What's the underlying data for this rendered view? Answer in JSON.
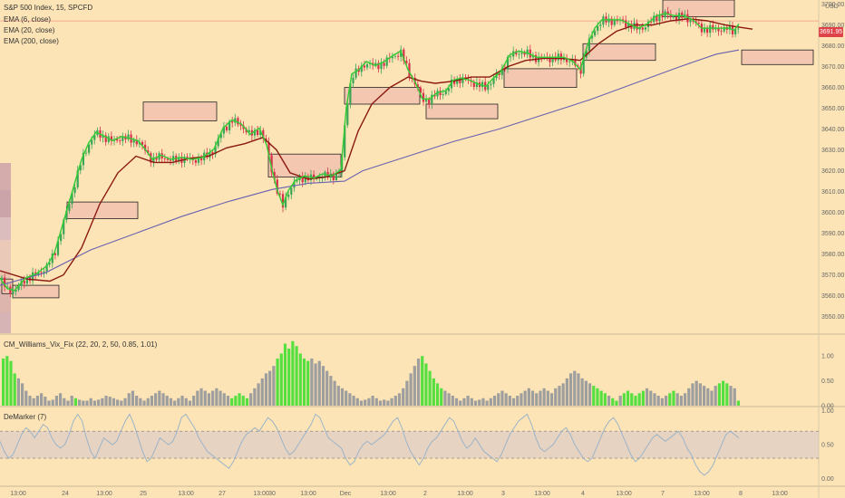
{
  "header": {
    "title": "S&P 500 Index, 15, SPCFD",
    "ema_labels": [
      "EMA (6, close)",
      "EMA (20, close)",
      "EMA (200, close)"
    ],
    "currency": "USD",
    "last_price": "3691.95"
  },
  "panes": {
    "vix_fix_label": "CM_Williams_Vix_Fix (22, 20, 2, 50, 0.85, 1.01)",
    "demarker_label": "DeMarker (7)"
  },
  "colors": {
    "background": "#fce4b6",
    "candle_up": "#3aa655",
    "candle_down": "#d4304a",
    "ema6": "#33cc33",
    "ema20": "#8b1a10",
    "ema200": "#6a61b0",
    "box_fill": "#f3c7b0",
    "vix_normal": "#9e9e9e",
    "vix_alert": "#55e040",
    "demarker_line": "#9bb4c8",
    "demarker_band": "#d6c4cc"
  },
  "chart_data": [
    {
      "type": "candlestick",
      "title": "S&P 500 Index, 15, SPCFD",
      "ylim": [
        3542,
        3702
      ],
      "y_ticks": [
        3550,
        3560,
        3570,
        3580,
        3590,
        3600,
        3610,
        3620,
        3630,
        3640,
        3650,
        3660,
        3670,
        3680,
        3690,
        3700
      ],
      "x_ticks": [
        "13:00",
        "24",
        "13:00",
        "25",
        "13:00",
        "27",
        "13:00",
        "30",
        "13:00",
        "Dec",
        "13:00",
        "2",
        "13:00",
        "3",
        "13:00",
        "4",
        "13:00",
        "7",
        "13:00",
        "8",
        "13:00"
      ],
      "close_path": [
        [
          0,
          3568
        ],
        [
          8,
          3563
        ],
        [
          16,
          3562
        ],
        [
          28,
          3568
        ],
        [
          40,
          3570
        ],
        [
          52,
          3574
        ],
        [
          60,
          3580
        ],
        [
          70,
          3595
        ],
        [
          80,
          3610
        ],
        [
          90,
          3625
        ],
        [
          98,
          3633
        ],
        [
          106,
          3638
        ],
        [
          116,
          3636
        ],
        [
          124,
          3634
        ],
        [
          134,
          3636
        ],
        [
          144,
          3635
        ],
        [
          152,
          3634
        ],
        [
          160,
          3630
        ],
        [
          168,
          3625
        ],
        [
          178,
          3627
        ],
        [
          188,
          3625
        ],
        [
          200,
          3626
        ],
        [
          212,
          3625
        ],
        [
          224,
          3626
        ],
        [
          236,
          3630
        ],
        [
          246,
          3640
        ],
        [
          256,
          3644
        ],
        [
          266,
          3642
        ],
        [
          276,
          3637
        ],
        [
          286,
          3640
        ],
        [
          294,
          3632
        ],
        [
          300,
          3620
        ],
        [
          306,
          3610
        ],
        [
          312,
          3603
        ],
        [
          318,
          3610
        ],
        [
          326,
          3615
        ],
        [
          336,
          3617
        ],
        [
          346,
          3616
        ],
        [
          356,
          3618
        ],
        [
          366,
          3617
        ],
        [
          376,
          3620
        ],
        [
          382,
          3650
        ],
        [
          388,
          3666
        ],
        [
          396,
          3668
        ],
        [
          404,
          3672
        ],
        [
          414,
          3670
        ],
        [
          424,
          3672
        ],
        [
          434,
          3675
        ],
        [
          442,
          3677
        ],
        [
          450,
          3668
        ],
        [
          458,
          3662
        ],
        [
          466,
          3654
        ],
        [
          474,
          3654
        ],
        [
          482,
          3657
        ],
        [
          492,
          3658
        ],
        [
          500,
          3663
        ],
        [
          508,
          3664
        ],
        [
          518,
          3663
        ],
        [
          528,
          3661
        ],
        [
          536,
          3660
        ],
        [
          544,
          3664
        ],
        [
          552,
          3667
        ],
        [
          562,
          3675
        ],
        [
          572,
          3677
        ],
        [
          582,
          3676
        ],
        [
          592,
          3674
        ],
        [
          602,
          3674
        ],
        [
          612,
          3674
        ],
        [
          622,
          3674
        ],
        [
          632,
          3672
        ],
        [
          640,
          3668
        ],
        [
          648,
          3680
        ],
        [
          656,
          3688
        ],
        [
          664,
          3692
        ],
        [
          674,
          3692
        ],
        [
          684,
          3692
        ],
        [
          694,
          3690
        ],
        [
          704,
          3688
        ],
        [
          714,
          3690
        ],
        [
          724,
          3694
        ],
        [
          734,
          3695
        ],
        [
          744,
          3694
        ],
        [
          754,
          3694
        ],
        [
          764,
          3692
        ],
        [
          774,
          3688
        ],
        [
          784,
          3688
        ],
        [
          794,
          3688
        ],
        [
          804,
          3688
        ],
        [
          810,
          3687
        ],
        [
          815,
          3690
        ]
      ],
      "ema_20_path": [
        [
          0,
          3572
        ],
        [
          30,
          3568
        ],
        [
          55,
          3567
        ],
        [
          70,
          3570
        ],
        [
          90,
          3583
        ],
        [
          110,
          3604
        ],
        [
          130,
          3619
        ],
        [
          150,
          3627
        ],
        [
          170,
          3624
        ],
        [
          190,
          3624
        ],
        [
          210,
          3626
        ],
        [
          230,
          3627
        ],
        [
          250,
          3631
        ],
        [
          270,
          3633
        ],
        [
          290,
          3636
        ],
        [
          305,
          3630
        ],
        [
          320,
          3619
        ],
        [
          340,
          3616
        ],
        [
          360,
          3617
        ],
        [
          380,
          3620
        ],
        [
          395,
          3639
        ],
        [
          410,
          3652
        ],
        [
          430,
          3660
        ],
        [
          450,
          3665
        ],
        [
          465,
          3663
        ],
        [
          480,
          3662
        ],
        [
          500,
          3663
        ],
        [
          520,
          3665
        ],
        [
          540,
          3665
        ],
        [
          560,
          3670
        ],
        [
          580,
          3673
        ],
        [
          600,
          3674
        ],
        [
          620,
          3674
        ],
        [
          640,
          3673
        ],
        [
          660,
          3681
        ],
        [
          680,
          3687
        ],
        [
          700,
          3690
        ],
        [
          720,
          3690
        ],
        [
          740,
          3692
        ],
        [
          760,
          3693
        ],
        [
          780,
          3692
        ],
        [
          800,
          3690
        ],
        [
          815,
          3689
        ],
        [
          830,
          3688
        ]
      ],
      "ema_200_path": [
        [
          0,
          3565
        ],
        [
          50,
          3571
        ],
        [
          100,
          3582
        ],
        [
          150,
          3590
        ],
        [
          200,
          3598
        ],
        [
          250,
          3605
        ],
        [
          300,
          3611
        ],
        [
          340,
          3614
        ],
        [
          380,
          3615
        ],
        [
          400,
          3620
        ],
        [
          450,
          3627
        ],
        [
          500,
          3634
        ],
        [
          550,
          3640
        ],
        [
          600,
          3647
        ],
        [
          650,
          3654
        ],
        [
          700,
          3662
        ],
        [
          750,
          3670
        ],
        [
          790,
          3676
        ],
        [
          815,
          3678
        ]
      ],
      "zones": [
        [
          2,
          14,
          3568,
          3561
        ],
        [
          74,
          152,
          3605,
          3597
        ],
        [
          158,
          239,
          3653,
          3644
        ],
        [
          296,
          376,
          3628,
          3617
        ],
        [
          380,
          463,
          3660,
          3652
        ],
        [
          470,
          549,
          3652,
          3645
        ],
        [
          556,
          636,
          3669,
          3660
        ],
        [
          643,
          723,
          3681,
          3673
        ],
        [
          731,
          810,
          3702,
          3694
        ],
        [
          818,
          897,
          3678,
          3671
        ],
        [
          14,
          65,
          3565,
          3559
        ]
      ]
    },
    {
      "type": "bar",
      "title": "CM_Williams_Vix_Fix (22, 20, 2, 50, 0.85, 1.01)",
      "ylim": [
        0,
        1.35
      ],
      "y_ticks": [
        "0.00",
        "0.50",
        "1.00"
      ],
      "values": [
        0.95,
        1.0,
        0.9,
        0.65,
        0.55,
        0.45,
        0.3,
        0.2,
        0.15,
        0.2,
        0.25,
        0.18,
        0.1,
        0.12,
        0.2,
        0.25,
        0.15,
        0.1,
        0.2,
        0.15,
        0.12,
        0.1,
        0.1,
        0.15,
        0.1,
        0.12,
        0.15,
        0.2,
        0.18,
        0.15,
        0.12,
        0.1,
        0.15,
        0.25,
        0.3,
        0.2,
        0.15,
        0.1,
        0.15,
        0.2,
        0.25,
        0.3,
        0.25,
        0.2,
        0.15,
        0.1,
        0.15,
        0.2,
        0.15,
        0.1,
        0.2,
        0.3,
        0.35,
        0.3,
        0.25,
        0.3,
        0.35,
        0.3,
        0.25,
        0.2,
        0.15,
        0.2,
        0.25,
        0.2,
        0.15,
        0.25,
        0.35,
        0.45,
        0.55,
        0.65,
        0.7,
        0.8,
        0.95,
        1.05,
        1.25,
        1.15,
        1.3,
        1.2,
        1.05,
        0.95,
        0.9,
        0.95,
        0.85,
        0.9,
        0.8,
        0.7,
        0.6,
        0.5,
        0.4,
        0.35,
        0.3,
        0.25,
        0.2,
        0.15,
        0.1,
        0.12,
        0.15,
        0.2,
        0.15,
        0.1,
        0.12,
        0.1,
        0.15,
        0.2,
        0.25,
        0.35,
        0.5,
        0.65,
        0.8,
        0.95,
        1.0,
        0.85,
        0.7,
        0.55,
        0.45,
        0.35,
        0.3,
        0.25,
        0.2,
        0.15,
        0.1,
        0.15,
        0.2,
        0.15,
        0.1,
        0.12,
        0.15,
        0.1,
        0.15,
        0.2,
        0.25,
        0.3,
        0.25,
        0.2,
        0.15,
        0.2,
        0.25,
        0.3,
        0.35,
        0.3,
        0.25,
        0.3,
        0.35,
        0.3,
        0.25,
        0.35,
        0.4,
        0.45,
        0.55,
        0.65,
        0.7,
        0.65,
        0.55,
        0.5,
        0.45,
        0.4,
        0.35,
        0.3,
        0.25,
        0.2,
        0.15,
        0.1,
        0.2,
        0.25,
        0.3,
        0.25,
        0.2,
        0.25,
        0.3,
        0.35,
        0.3,
        0.25,
        0.2,
        0.15,
        0.2,
        0.25,
        0.3,
        0.25,
        0.2,
        0.25,
        0.35,
        0.45,
        0.5,
        0.45,
        0.4,
        0.35,
        0.3,
        0.4,
        0.45,
        0.5,
        0.45,
        0.4,
        0.35,
        0.1
      ],
      "alert_indices": [
        0,
        1,
        2,
        3,
        19,
        60,
        61,
        62,
        63,
        64,
        72,
        73,
        74,
        75,
        76,
        77,
        78,
        79,
        80,
        110,
        111,
        112,
        113,
        114,
        115,
        155,
        156,
        157,
        158,
        160,
        161,
        163,
        164,
        165,
        166,
        167,
        168,
        175,
        176,
        188,
        189,
        190,
        193,
        197
      ]
    },
    {
      "type": "line",
      "title": "DeMarker (7)",
      "ylim": [
        -0.1,
        1.05
      ],
      "y_ticks": [
        "0.00",
        "0.50",
        "1.00"
      ],
      "band": [
        0.3,
        0.7
      ],
      "values": [
        0.55,
        0.4,
        0.3,
        0.35,
        0.5,
        0.65,
        0.75,
        0.7,
        0.6,
        0.7,
        0.8,
        0.75,
        0.6,
        0.5,
        0.45,
        0.5,
        0.65,
        0.85,
        0.95,
        0.85,
        0.6,
        0.4,
        0.3,
        0.45,
        0.6,
        0.55,
        0.5,
        0.55,
        0.7,
        0.85,
        0.95,
        0.8,
        0.6,
        0.4,
        0.25,
        0.3,
        0.45,
        0.6,
        0.55,
        0.5,
        0.55,
        0.7,
        0.9,
        0.95,
        0.85,
        0.75,
        0.6,
        0.5,
        0.4,
        0.35,
        0.3,
        0.25,
        0.2,
        0.15,
        0.25,
        0.4,
        0.55,
        0.65,
        0.7,
        0.75,
        0.7,
        0.8,
        0.9,
        0.85,
        0.75,
        0.6,
        0.45,
        0.35,
        0.4,
        0.5,
        0.6,
        0.7,
        0.8,
        0.95,
        0.9,
        0.75,
        0.6,
        0.55,
        0.5,
        0.45,
        0.3,
        0.2,
        0.25,
        0.4,
        0.5,
        0.55,
        0.5,
        0.55,
        0.6,
        0.65,
        0.75,
        0.85,
        0.9,
        0.75,
        0.55,
        0.4,
        0.3,
        0.2,
        0.3,
        0.45,
        0.55,
        0.6,
        0.7,
        0.8,
        0.9,
        0.85,
        0.7,
        0.55,
        0.45,
        0.5,
        0.6,
        0.5,
        0.4,
        0.35,
        0.3,
        0.25,
        0.35,
        0.5,
        0.65,
        0.75,
        0.85,
        0.9,
        0.95,
        0.8,
        0.6,
        0.45,
        0.4,
        0.45,
        0.5,
        0.6,
        0.7,
        0.75,
        0.65,
        0.5,
        0.4,
        0.3,
        0.25,
        0.3,
        0.45,
        0.6,
        0.75,
        0.85,
        0.9,
        0.8,
        0.65,
        0.5,
        0.35,
        0.25,
        0.3,
        0.4,
        0.5,
        0.6,
        0.65,
        0.6,
        0.55,
        0.6,
        0.65,
        0.7,
        0.6,
        0.45,
        0.35,
        0.2,
        0.1,
        0.05,
        0.1,
        0.2,
        0.35,
        0.5,
        0.65,
        0.7,
        0.65,
        0.6
      ]
    }
  ]
}
